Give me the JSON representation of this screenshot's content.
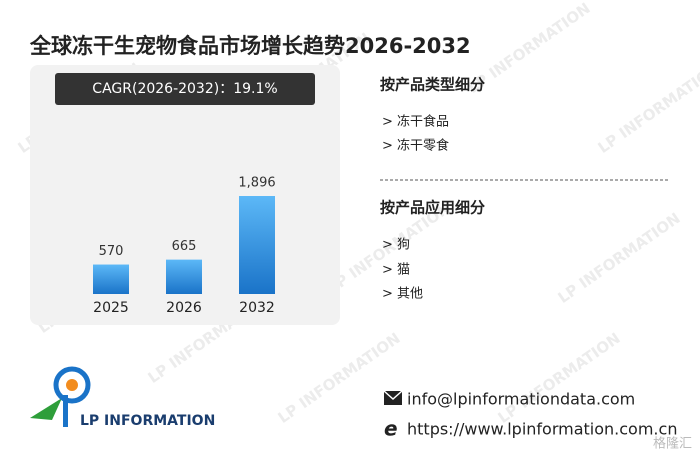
{
  "chart_data": {
    "type": "bar",
    "title": "全球冻干生宠物食品市场增长趋势2026-2032",
    "subtitle": "CAGR(2026-2032)：19.1%",
    "categories": [
      "2025",
      "2026",
      "2032"
    ],
    "values": [
      570,
      665,
      1896
    ],
    "value_labels": [
      "570",
      "665",
      "1,896"
    ],
    "color": "#1a73c8"
  },
  "segments": [
    {
      "title": "按产品类型细分",
      "items": [
        "> 冻干食品",
        "> 冻干零食"
      ]
    },
    {
      "title": "按产品应用细分",
      "items": [
        "> 狗",
        "> 猫",
        "> 其他"
      ]
    }
  ],
  "contact": {
    "email": "info@lpinformationdata.com",
    "website": "https://www.lpinformation.com.cn"
  },
  "logo": "LP INFORMATION",
  "watermark": "LP INFORMATION",
  "corner_mark": "格隆汇"
}
